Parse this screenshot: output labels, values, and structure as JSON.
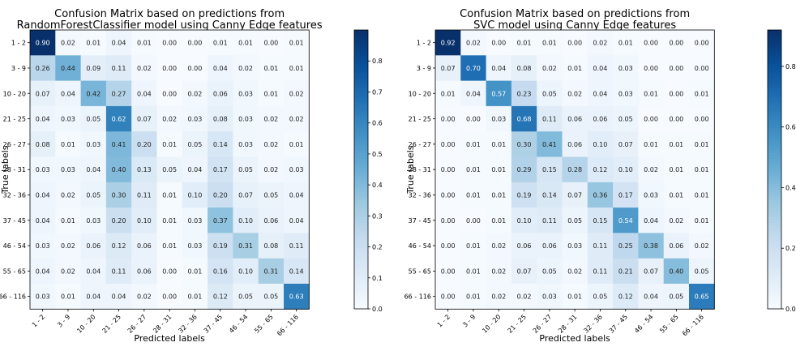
{
  "chart_data": [
    {
      "type": "heatmap",
      "title": "Confusion Matrix based on predictions from",
      "subtitle": "RandomForestClassifier model using Canny Edge features",
      "xlabel": "Predicted labels",
      "ylabel": "True labels",
      "categories": [
        "1 - 2",
        "3 - 9",
        "10 - 20",
        "21 - 25",
        "26 - 27",
        "28 - 31",
        "32 - 36",
        "37 - 45",
        "46 - 54",
        "55 - 65",
        "66 - 116"
      ],
      "values": [
        [
          0.9,
          0.02,
          0.01,
          0.04,
          0.01,
          0.0,
          0.0,
          0.01,
          0.01,
          0.0,
          0.01
        ],
        [
          0.26,
          0.44,
          0.09,
          0.11,
          0.02,
          0.0,
          0.0,
          0.04,
          0.02,
          0.01,
          0.01
        ],
        [
          0.07,
          0.04,
          0.42,
          0.27,
          0.04,
          0.0,
          0.02,
          0.06,
          0.03,
          0.01,
          0.02
        ],
        [
          0.04,
          0.03,
          0.05,
          0.62,
          0.07,
          0.02,
          0.03,
          0.08,
          0.03,
          0.02,
          0.02
        ],
        [
          0.08,
          0.01,
          0.03,
          0.41,
          0.2,
          0.01,
          0.05,
          0.14,
          0.03,
          0.02,
          0.01
        ],
        [
          0.03,
          0.03,
          0.04,
          0.4,
          0.13,
          0.05,
          0.04,
          0.17,
          0.05,
          0.02,
          0.03
        ],
        [
          0.04,
          0.02,
          0.05,
          0.3,
          0.11,
          0.01,
          0.1,
          0.2,
          0.07,
          0.05,
          0.04
        ],
        [
          0.04,
          0.01,
          0.03,
          0.2,
          0.1,
          0.01,
          0.03,
          0.37,
          0.1,
          0.06,
          0.04
        ],
        [
          0.03,
          0.02,
          0.06,
          0.12,
          0.06,
          0.01,
          0.03,
          0.19,
          0.31,
          0.08,
          0.11
        ],
        [
          0.04,
          0.02,
          0.04,
          0.11,
          0.06,
          0.0,
          0.01,
          0.16,
          0.1,
          0.31,
          0.14
        ],
        [
          0.03,
          0.01,
          0.04,
          0.04,
          0.02,
          0.0,
          0.01,
          0.12,
          0.05,
          0.05,
          0.63
        ]
      ],
      "colorbar": {
        "vmin": 0.0,
        "vmax": 0.9,
        "ticks": [
          "0.0",
          "0.1",
          "0.2",
          "0.3",
          "0.4",
          "0.5",
          "0.6",
          "0.7",
          "0.8"
        ]
      },
      "colormap": {
        "low": "#f7fbff",
        "high": "#08306b",
        "name": "Blues"
      }
    },
    {
      "type": "heatmap",
      "title": "Confusion Matrix based on predictions from",
      "subtitle": "SVC model using Canny Edge features",
      "xlabel": "Predicted labels",
      "ylabel": "True labels",
      "categories": [
        "1 - 2",
        "3 - 9",
        "10 - 20",
        "21 - 25",
        "26 - 27",
        "28 - 31",
        "32 - 36",
        "37 - 45",
        "46 - 54",
        "55 - 65",
        "66 - 116"
      ],
      "values": [
        [
          0.92,
          0.02,
          0.0,
          0.01,
          0.01,
          0.0,
          0.02,
          0.01,
          0.0,
          0.0,
          0.0
        ],
        [
          0.07,
          0.7,
          0.04,
          0.08,
          0.02,
          0.01,
          0.04,
          0.03,
          0.0,
          0.0,
          0.0
        ],
        [
          0.01,
          0.04,
          0.57,
          0.23,
          0.05,
          0.02,
          0.04,
          0.03,
          0.01,
          0.0,
          0.01
        ],
        [
          0.0,
          0.0,
          0.03,
          0.68,
          0.11,
          0.06,
          0.06,
          0.05,
          0.0,
          0.0,
          0.0
        ],
        [
          0.0,
          0.01,
          0.01,
          0.3,
          0.41,
          0.06,
          0.1,
          0.07,
          0.01,
          0.01,
          0.01
        ],
        [
          0.0,
          0.01,
          0.01,
          0.29,
          0.15,
          0.28,
          0.12,
          0.1,
          0.02,
          0.01,
          0.01
        ],
        [
          0.0,
          0.01,
          0.01,
          0.19,
          0.14,
          0.07,
          0.36,
          0.17,
          0.03,
          0.01,
          0.01
        ],
        [
          0.0,
          0.0,
          0.01,
          0.1,
          0.11,
          0.05,
          0.15,
          0.54,
          0.04,
          0.02,
          0.01
        ],
        [
          0.0,
          0.01,
          0.02,
          0.06,
          0.06,
          0.03,
          0.11,
          0.25,
          0.38,
          0.06,
          0.02
        ],
        [
          0.0,
          0.01,
          0.02,
          0.07,
          0.05,
          0.02,
          0.11,
          0.21,
          0.07,
          0.4,
          0.05
        ],
        [
          0.0,
          0.01,
          0.02,
          0.02,
          0.03,
          0.01,
          0.05,
          0.12,
          0.04,
          0.05,
          0.65
        ]
      ],
      "colorbar": {
        "vmin": 0.0,
        "vmax": 0.92,
        "ticks": [
          "0.0",
          "0.2",
          "0.4",
          "0.6",
          "0.8"
        ]
      },
      "colormap": {
        "low": "#f7fbff",
        "high": "#08306b",
        "name": "Blues"
      }
    }
  ]
}
